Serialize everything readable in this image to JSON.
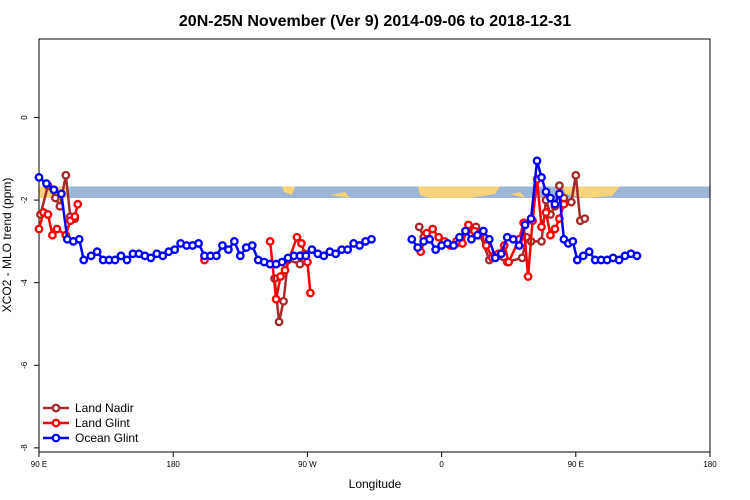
{
  "chart_data": {
    "type": "line",
    "title": "20N-25N November (Ver 9)   2014-09-06 to 2018-12-31",
    "xlabel": "Longitude",
    "ylabel": "XCO2 - MLO trend (ppm)",
    "xlim": [
      90,
      450
    ],
    "ylim": [
      -8,
      2
    ],
    "x_ticks": [
      {
        "value": 90,
        "label": "90 E"
      },
      {
        "value": 180,
        "label": "180"
      },
      {
        "value": 270,
        "label": "90 W"
      },
      {
        "value": 360,
        "label": "0"
      },
      {
        "value": 450,
        "label": "90 E"
      },
      {
        "value": 540,
        "label": "180"
      }
    ],
    "y_ticks": [
      {
        "value": 0,
        "label": "0"
      },
      {
        "value": -2,
        "label": "-2"
      },
      {
        "value": -4,
        "label": "-4"
      },
      {
        "value": -6,
        "label": "-6"
      },
      {
        "value": -8,
        "label": "-8"
      }
    ],
    "xlim_display": [
      90,
      540
    ],
    "ylim_display": [
      -8.1,
      1.9
    ],
    "map_strip": {
      "y_top": -1.67,
      "y_bottom": -1.95,
      "ocean_color": "#9fb5d6",
      "land_color": "#f7d37a"
    },
    "legend": {
      "position": "bottom-left"
    },
    "series": [
      {
        "name": "Land Nadir",
        "color": "#a52a2a",
        "points": [
          [
            91,
            -2.35
          ],
          [
            96,
            -1.65
          ],
          [
            101,
            -1.95
          ],
          [
            104,
            -2.15
          ],
          [
            108,
            -1.4
          ],
          [
            111,
            -2.4
          ],
          [
            114,
            -2.45
          ],
          [
            248,
            -3.9
          ],
          [
            251,
            -4.95
          ],
          [
            254,
            -4.45
          ],
          [
            257,
            -3.45
          ],
          [
            265,
            -3.55
          ],
          [
            268,
            -3.3
          ],
          [
            345,
            -2.65
          ],
          [
            348,
            -2.9
          ],
          [
            370,
            -3.05
          ],
          [
            377,
            -2.75
          ],
          [
            383,
            -2.65
          ],
          [
            386,
            -2.85
          ],
          [
            392,
            -3.45
          ],
          [
            395,
            -3.35
          ],
          [
            404,
            -3.5
          ],
          [
            414,
            -3.4
          ],
          [
            417,
            -2.9
          ],
          [
            420,
            -3.0
          ],
          [
            427,
            -3.0
          ],
          [
            430,
            -2.0
          ],
          [
            433,
            -2.35
          ],
          [
            436,
            -2.15
          ],
          [
            439,
            -1.65
          ],
          [
            442,
            -1.95
          ],
          [
            447,
            -2.05
          ],
          [
            450,
            -1.4
          ],
          [
            453,
            -2.5
          ],
          [
            456,
            -2.45
          ]
        ]
      },
      {
        "name": "Land Glint",
        "color": "#ff0000",
        "points": [
          [
            90,
            -2.7
          ],
          [
            93,
            -2.3
          ],
          [
            96,
            -2.35
          ],
          [
            99,
            -2.85
          ],
          [
            102,
            -2.7
          ],
          [
            108,
            -2.85
          ],
          [
            111,
            -2.5
          ],
          [
            114,
            -2.4
          ],
          [
            116,
            -2.1
          ],
          [
            201,
            -3.45
          ],
          [
            245,
            -3.0
          ],
          [
            249,
            -4.4
          ],
          [
            252,
            -3.85
          ],
          [
            255,
            -3.7
          ],
          [
            263,
            -2.9
          ],
          [
            266,
            -3.05
          ],
          [
            270,
            -3.5
          ],
          [
            272,
            -4.25
          ],
          [
            346,
            -3.25
          ],
          [
            350,
            -2.8
          ],
          [
            354,
            -2.7
          ],
          [
            358,
            -2.9
          ],
          [
            362,
            -3.0
          ],
          [
            366,
            -3.1
          ],
          [
            370,
            -3.0
          ],
          [
            374,
            -3.05
          ],
          [
            378,
            -2.6
          ],
          [
            382,
            -2.75
          ],
          [
            386,
            -2.8
          ],
          [
            390,
            -3.1
          ],
          [
            394,
            -3.4
          ],
          [
            398,
            -3.3
          ],
          [
            402,
            -3.1
          ],
          [
            405,
            -3.5
          ],
          [
            412,
            -2.95
          ],
          [
            415,
            -2.55
          ],
          [
            418,
            -3.85
          ],
          [
            421,
            -2.5
          ],
          [
            424,
            -1.5
          ],
          [
            427,
            -2.65
          ],
          [
            430,
            -2.3
          ],
          [
            433,
            -2.85
          ],
          [
            436,
            -2.7
          ],
          [
            439,
            -2.45
          ],
          [
            442,
            -2.1
          ]
        ]
      },
      {
        "name": "Ocean Glint",
        "color": "#0000ff",
        "points": [
          [
            90,
            -1.45
          ],
          [
            95,
            -1.6
          ],
          [
            100,
            -1.75
          ],
          [
            105,
            -1.85
          ],
          [
            109,
            -2.95
          ],
          [
            113,
            -3.0
          ],
          [
            117,
            -2.95
          ],
          [
            120,
            -3.45
          ],
          [
            125,
            -3.35
          ],
          [
            129,
            -3.25
          ],
          [
            133,
            -3.45
          ],
          [
            137,
            -3.45
          ],
          [
            141,
            -3.45
          ],
          [
            145,
            -3.35
          ],
          [
            149,
            -3.45
          ],
          [
            153,
            -3.3
          ],
          [
            157,
            -3.3
          ],
          [
            161,
            -3.35
          ],
          [
            165,
            -3.4
          ],
          [
            169,
            -3.3
          ],
          [
            173,
            -3.35
          ],
          [
            177,
            -3.25
          ],
          [
            181,
            -3.2
          ],
          [
            185,
            -3.05
          ],
          [
            189,
            -3.1
          ],
          [
            193,
            -3.1
          ],
          [
            197,
            -3.05
          ],
          [
            201,
            -3.35
          ],
          [
            205,
            -3.35
          ],
          [
            209,
            -3.35
          ],
          [
            213,
            -3.1
          ],
          [
            217,
            -3.2
          ],
          [
            221,
            -3.0
          ],
          [
            225,
            -3.35
          ],
          [
            229,
            -3.15
          ],
          [
            233,
            -3.1
          ],
          [
            237,
            -3.45
          ],
          [
            241,
            -3.5
          ],
          [
            245,
            -3.55
          ],
          [
            249,
            -3.55
          ],
          [
            253,
            -3.5
          ],
          [
            257,
            -3.4
          ],
          [
            261,
            -3.35
          ],
          [
            265,
            -3.35
          ],
          [
            269,
            -3.35
          ],
          [
            273,
            -3.2
          ],
          [
            277,
            -3.3
          ],
          [
            281,
            -3.35
          ],
          [
            285,
            -3.25
          ],
          [
            289,
            -3.3
          ],
          [
            293,
            -3.2
          ],
          [
            297,
            -3.2
          ],
          [
            301,
            -3.05
          ],
          [
            305,
            -3.1
          ],
          [
            309,
            -3.0
          ],
          [
            313,
            -2.95
          ],
          [
            340,
            -2.95
          ],
          [
            344,
            -3.15
          ],
          [
            348,
            -3.0
          ],
          [
            352,
            -2.95
          ],
          [
            356,
            -3.2
          ],
          [
            360,
            -3.1
          ],
          [
            364,
            -3.05
          ],
          [
            368,
            -3.1
          ],
          [
            372,
            -2.9
          ],
          [
            376,
            -2.75
          ],
          [
            380,
            -2.95
          ],
          [
            384,
            -2.85
          ],
          [
            388,
            -2.75
          ],
          [
            392,
            -2.95
          ],
          [
            396,
            -3.4
          ],
          [
            400,
            -3.3
          ],
          [
            404,
            -2.9
          ],
          [
            408,
            -2.95
          ],
          [
            412,
            -3.1
          ],
          [
            416,
            -2.6
          ],
          [
            420,
            -2.45
          ],
          [
            424,
            -1.05
          ],
          [
            427,
            -1.45
          ],
          [
            430,
            -1.8
          ],
          [
            433,
            -1.95
          ],
          [
            436,
            -2.1
          ],
          [
            439,
            -1.85
          ],
          [
            442,
            -2.95
          ],
          [
            445,
            -3.05
          ],
          [
            448,
            -3.0
          ],
          [
            451,
            -3.45
          ],
          [
            455,
            -3.35
          ],
          [
            459,
            -3.25
          ],
          [
            463,
            -3.45
          ],
          [
            467,
            -3.45
          ],
          [
            471,
            -3.45
          ],
          [
            475,
            -3.4
          ],
          [
            479,
            -3.45
          ],
          [
            483,
            -3.35
          ],
          [
            487,
            -3.3
          ],
          [
            491,
            -3.35
          ]
        ]
      }
    ]
  }
}
